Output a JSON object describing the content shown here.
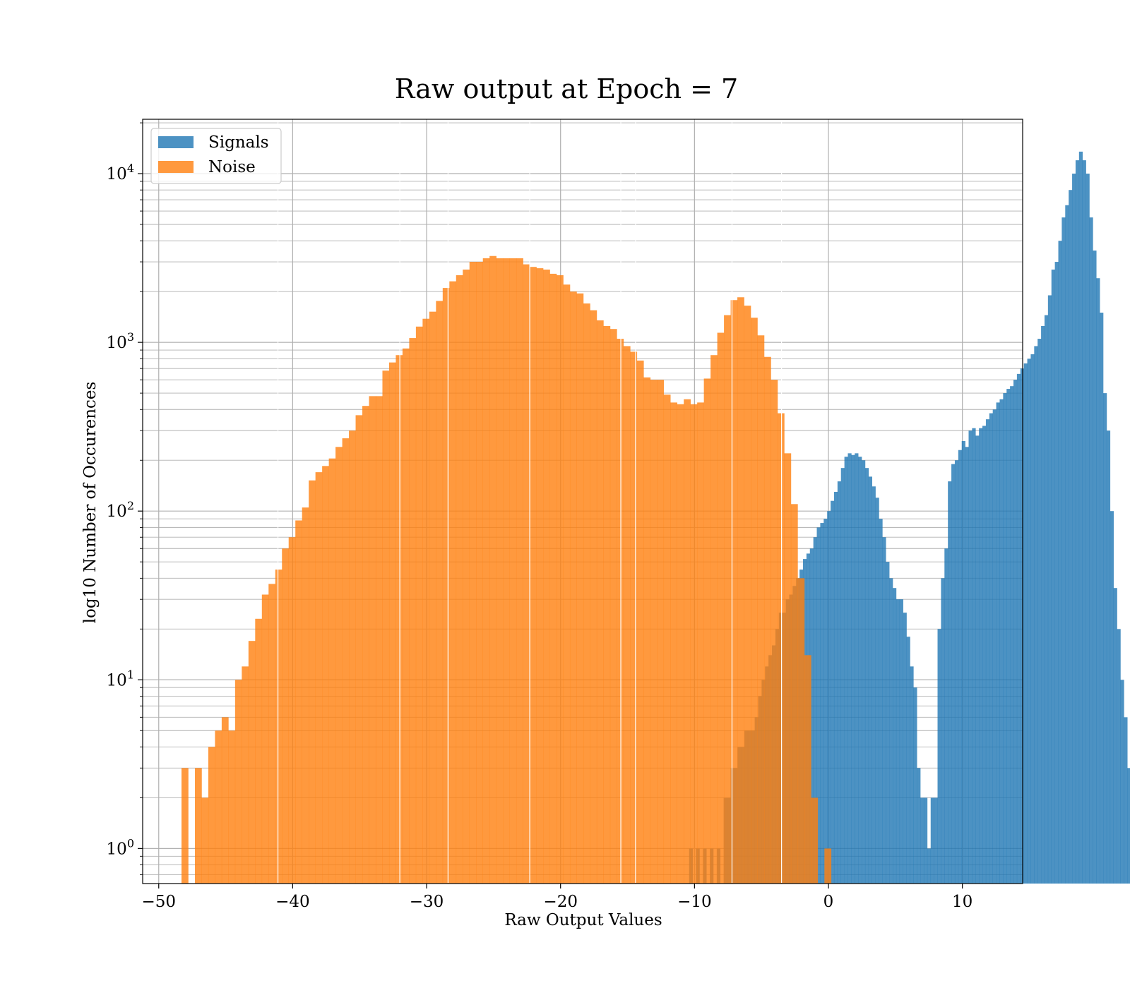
{
  "chart_data": {
    "type": "bar",
    "title": "Raw output at Epoch = 7",
    "xlabel": "Raw Output Values",
    "ylabel": "log10 Number of Occurences",
    "xlim": [
      -51.2,
      14.5
    ],
    "ylim": [
      0.62,
      21000
    ],
    "y_scale": "log",
    "grid": true,
    "grid_minor": true,
    "legend_position": "top-left",
    "x_ticks": [
      {
        "value": -50,
        "label": "−50"
      },
      {
        "value": -40,
        "label": "−40"
      },
      {
        "value": -30,
        "label": "−30"
      },
      {
        "value": -20,
        "label": "−20"
      },
      {
        "value": -10,
        "label": "−10"
      },
      {
        "value": 0,
        "label": "0"
      },
      {
        "value": 10,
        "label": "10"
      }
    ],
    "y_ticks": [
      {
        "value": 1,
        "base": "10",
        "exp": "0"
      },
      {
        "value": 10,
        "base": "10",
        "exp": "1"
      },
      {
        "value": 100,
        "base": "10",
        "exp": "2"
      },
      {
        "value": 1000,
        "base": "10",
        "exp": "3"
      },
      {
        "value": 10000,
        "base": "10",
        "exp": "4"
      }
    ],
    "series": [
      {
        "name": "Signals",
        "color": "#1f77b4",
        "alpha": 0.8,
        "x_start": -10.4,
        "bin_width": 0.2576,
        "values": [
          1,
          0,
          1,
          0,
          1,
          0,
          1,
          0,
          1,
          0,
          2,
          2,
          3,
          3,
          4,
          4,
          5,
          5,
          5,
          6,
          8,
          10,
          12,
          14,
          16,
          20,
          25,
          25,
          30,
          32,
          36,
          40,
          45,
          52,
          56,
          60,
          70,
          80,
          85,
          90,
          100,
          115,
          130,
          150,
          180,
          210,
          220,
          215,
          220,
          210,
          200,
          180,
          160,
          140,
          120,
          90,
          70,
          50,
          40,
          35,
          30,
          30,
          25,
          18,
          12,
          9,
          3,
          2,
          2,
          1,
          2,
          2,
          20,
          40,
          60,
          150,
          190,
          200,
          230,
          260,
          240,
          300,
          310,
          280,
          310,
          320,
          350,
          380,
          400,
          440,
          460,
          500,
          530,
          550,
          600,
          650,
          700,
          750,
          800,
          850,
          950,
          1050,
          1250,
          1450,
          1900,
          2700,
          3000,
          4000,
          5500,
          6500,
          8000,
          10000,
          12000,
          13500,
          12000,
          10000,
          5500,
          3500,
          2400,
          1500,
          500,
          300,
          100,
          35,
          20,
          10,
          6,
          3
        ],
        "bar_gaps": []
      },
      {
        "name": "Noise",
        "color": "#ff7f0e",
        "alpha": 0.8,
        "x_start": -48.3,
        "bin_width": 0.5,
        "values": [
          3,
          0,
          3,
          2,
          4,
          5,
          6,
          5,
          10,
          12,
          17,
          23,
          32,
          37,
          45,
          60,
          70,
          88,
          105,
          152,
          170,
          185,
          205,
          240,
          270,
          300,
          370,
          420,
          480,
          480,
          680,
          760,
          840,
          920,
          1060,
          1240,
          1380,
          1520,
          1760,
          2100,
          2300,
          2500,
          2700,
          3000,
          3000,
          3150,
          3250,
          3150,
          3150,
          3150,
          3150,
          2900,
          2800,
          2750,
          2700,
          2550,
          2500,
          2200,
          2000,
          1950,
          1700,
          1550,
          1350,
          1250,
          1200,
          1050,
          950,
          880,
          780,
          620,
          600,
          600,
          490,
          440,
          430,
          460,
          430,
          440,
          610,
          840,
          1140,
          1450,
          1780,
          1850,
          1650,
          1400,
          1100,
          820,
          600,
          380,
          220,
          110,
          40,
          14,
          2,
          0,
          1,
          0,
          0,
          0
        ],
        "bar_gaps": [
          -41.1,
          -32.0,
          -28.4,
          -22.3,
          -15.5,
          -14.4,
          -7.2,
          -3.5
        ]
      }
    ]
  }
}
